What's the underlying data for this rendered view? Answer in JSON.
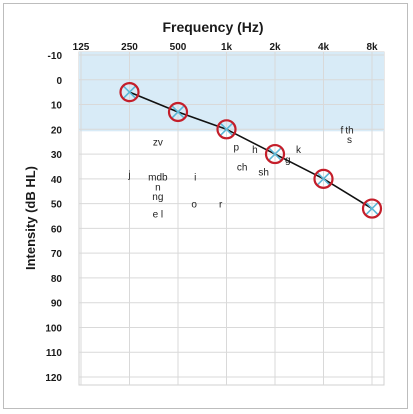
{
  "chart_data": {
    "type": "line",
    "title": "Frequency (Hz)",
    "xlabel": "Frequency (Hz)",
    "ylabel": "Intensity (dB HL)",
    "x_categories": [
      "125",
      "250",
      "500",
      "1k",
      "2k",
      "4k",
      "8k"
    ],
    "y_ticks": [
      -10,
      0,
      10,
      20,
      30,
      40,
      50,
      60,
      70,
      80,
      90,
      100,
      110,
      120
    ],
    "ylim": [
      -10,
      120
    ],
    "y_inverted": true,
    "grid": true,
    "normal_hearing_band": {
      "from": -10,
      "to": 20,
      "color": "#d8ebf7"
    },
    "series": [
      {
        "x": [
          "250",
          "500",
          "1k",
          "2k",
          "4k",
          "8k"
        ],
        "values": [
          5,
          13,
          20,
          30,
          40,
          52
        ],
        "marker_color": "#c41e2a",
        "cross_color": "#5bb7d6",
        "line_color": "#111111"
      }
    ],
    "speech_sounds": [
      {
        "label": "zv",
        "x": "375",
        "y": 25
      },
      {
        "label": "j",
        "x": "250",
        "y": 38
      },
      {
        "label": "mdb",
        "x": "375",
        "y": 39
      },
      {
        "label": "n",
        "x": "375",
        "y": 43
      },
      {
        "label": "ng",
        "x": "375",
        "y": 47
      },
      {
        "label": "e l",
        "x": "375",
        "y": 54
      },
      {
        "label": "i",
        "x": "640",
        "y": 39
      },
      {
        "label": "o",
        "x": "630",
        "y": 50
      },
      {
        "label": "r",
        "x": "920",
        "y": 50
      },
      {
        "label": "p",
        "x": "1.15k",
        "y": 27
      },
      {
        "label": "h",
        "x": "1.5k",
        "y": 28
      },
      {
        "label": "ch",
        "x": "1.25k",
        "y": 35
      },
      {
        "label": "sh",
        "x": "1.7k",
        "y": 37
      },
      {
        "label": "k",
        "x": "2.8k",
        "y": 28
      },
      {
        "label": "g",
        "x": "2.4k",
        "y": 32
      },
      {
        "label": "f",
        "x": "5.2k",
        "y": 20
      },
      {
        "label": "th",
        "x": "5.8k",
        "y": 20
      },
      {
        "label": "s",
        "x": "5.8k",
        "y": 24
      }
    ]
  }
}
